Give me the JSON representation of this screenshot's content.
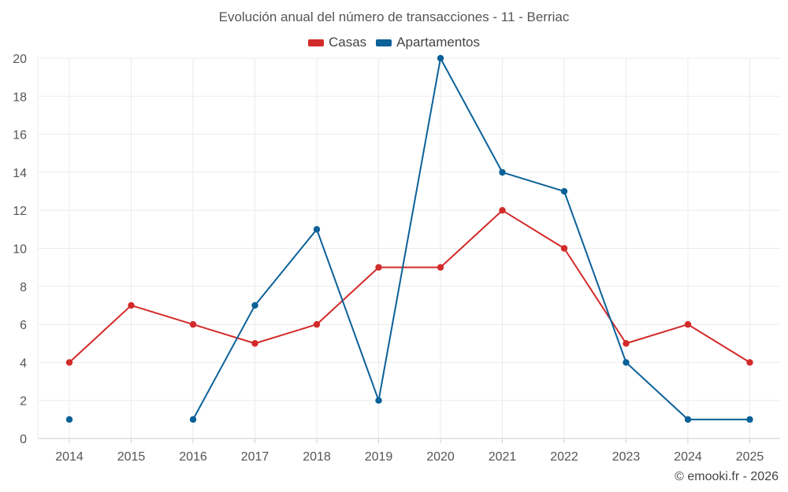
{
  "chart_data": {
    "type": "line",
    "title": "Evolución anual del número de transacciones - 11 - Berriac",
    "categories": [
      "2014",
      "2015",
      "2016",
      "2017",
      "2018",
      "2019",
      "2020",
      "2021",
      "2022",
      "2023",
      "2024",
      "2025"
    ],
    "ylim": [
      0,
      20
    ],
    "yticks": [
      0,
      2,
      4,
      6,
      8,
      10,
      12,
      14,
      16,
      18,
      20
    ],
    "grid": true,
    "legend_position": "top-center",
    "series": [
      {
        "name": "Casas",
        "color": "#d32a2a",
        "values": [
          4,
          7,
          6,
          5,
          6,
          9,
          9,
          12,
          10,
          5,
          6,
          4
        ]
      },
      {
        "name": "Apartamentos",
        "color": "#0b6198",
        "values": [
          1,
          null,
          1,
          7,
          11,
          2,
          20,
          14,
          13,
          4,
          1,
          1
        ]
      }
    ]
  },
  "footer": {
    "credit": "© emooki.fr - 2026"
  }
}
